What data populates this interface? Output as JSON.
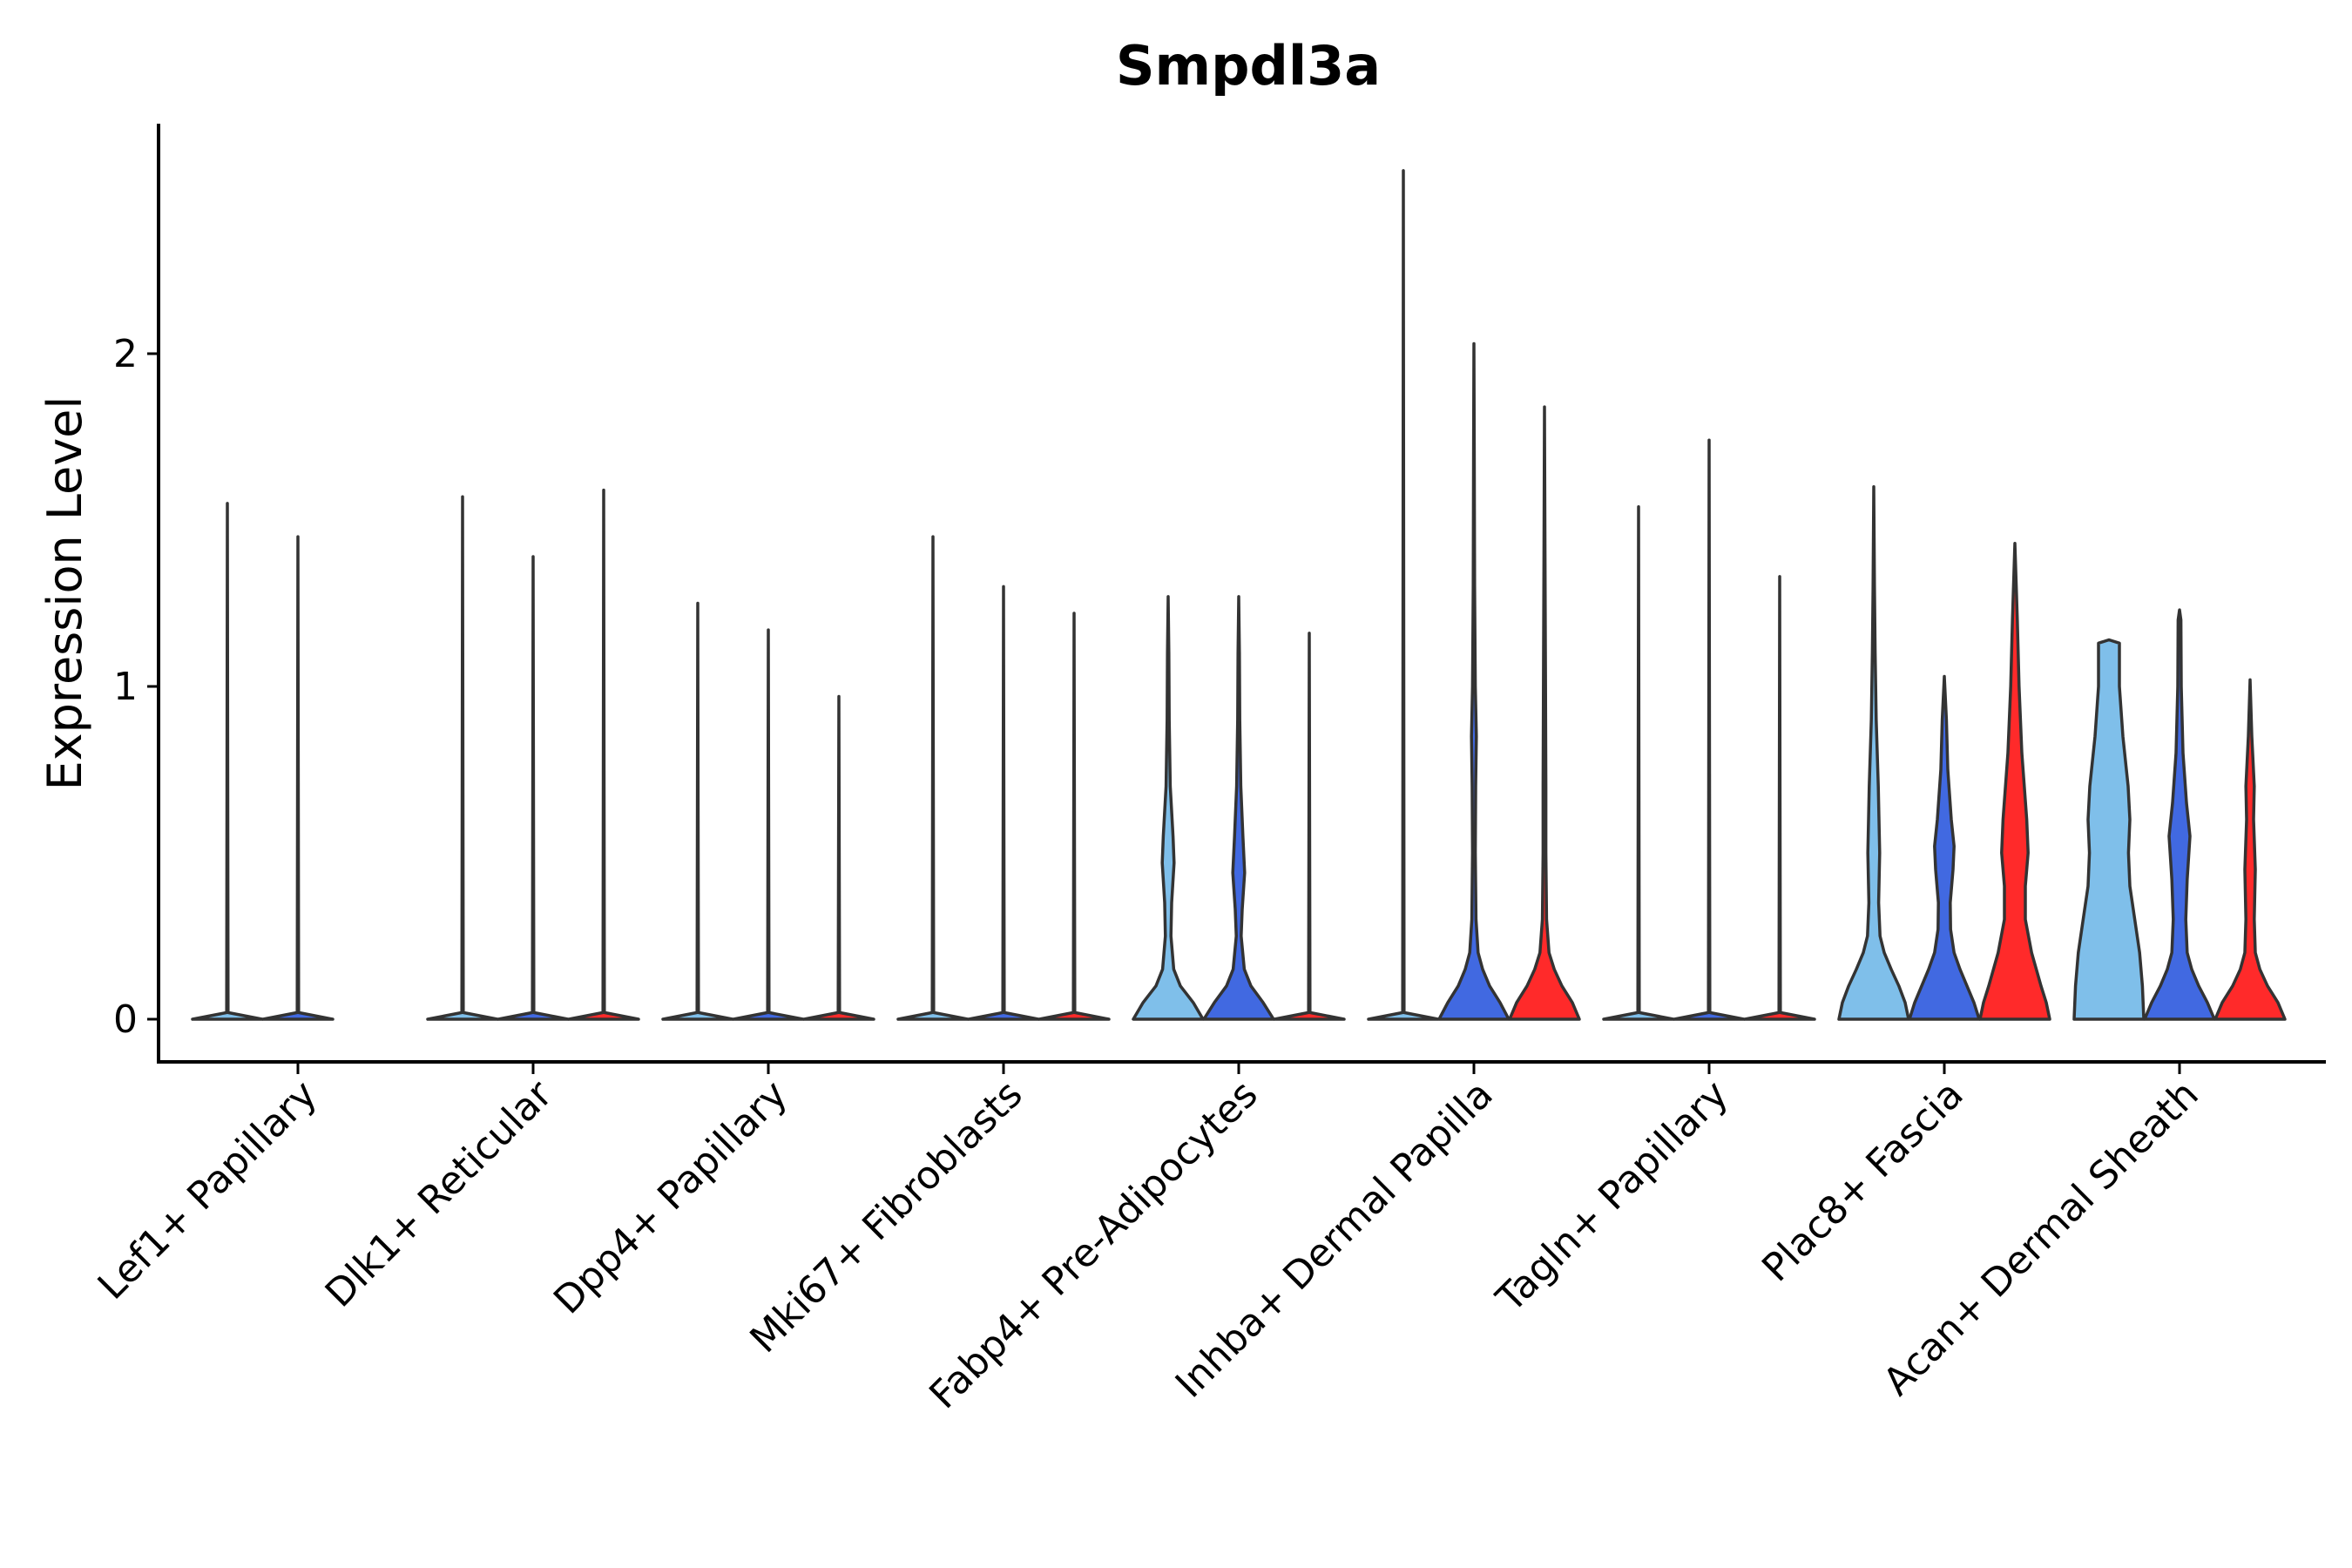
{
  "chart_data": {
    "type": "violin",
    "title": "Smpdl3a",
    "xlabel": "",
    "ylabel": "Expression Level",
    "ylim": [
      -0.13,
      2.7
    ],
    "yticks": [
      0,
      1,
      2
    ],
    "yticklabels": [
      "0",
      "1",
      "2"
    ],
    "categories": [
      "Lef1+ Papillary",
      "Dlk1+ Reticular",
      "Dpp4+ Papillary",
      "Mki67+ Fibroblasts",
      "Fabp4+ Pre-Adipocytes",
      "Inhba+ Dermal Papilla",
      "Tagln+ Papillary",
      "Plac8+ Fascia",
      "Acan+ Dermal Sheath"
    ],
    "series_colors": [
      "#7fbfea",
      "#4169e1",
      "#ff2a2a"
    ],
    "violins": [
      {
        "category": 0,
        "series": 0,
        "max": 1.55,
        "profile": [
          [
            0,
            1
          ],
          [
            0.02,
            0.02
          ],
          [
            1.55,
            0
          ]
        ]
      },
      {
        "category": 0,
        "series": 1,
        "max": 1.45,
        "profile": [
          [
            0,
            1
          ],
          [
            0.02,
            0.02
          ],
          [
            1.45,
            0
          ]
        ]
      },
      {
        "category": 1,
        "series": 0,
        "max": 1.57,
        "profile": [
          [
            0,
            1
          ],
          [
            0.02,
            0.02
          ],
          [
            1.57,
            0
          ]
        ]
      },
      {
        "category": 1,
        "series": 1,
        "max": 1.39,
        "profile": [
          [
            0,
            1
          ],
          [
            0.02,
            0.02
          ],
          [
            1.39,
            0
          ]
        ]
      },
      {
        "category": 1,
        "series": 2,
        "max": 1.59,
        "profile": [
          [
            0,
            1
          ],
          [
            0.02,
            0.02
          ],
          [
            1.59,
            0
          ]
        ]
      },
      {
        "category": 2,
        "series": 0,
        "max": 1.25,
        "profile": [
          [
            0,
            1
          ],
          [
            0.02,
            0.02
          ],
          [
            1.25,
            0
          ]
        ]
      },
      {
        "category": 2,
        "series": 1,
        "max": 1.17,
        "profile": [
          [
            0,
            1
          ],
          [
            0.02,
            0.02
          ],
          [
            1.17,
            0
          ]
        ]
      },
      {
        "category": 2,
        "series": 2,
        "max": 0.97,
        "profile": [
          [
            0,
            1
          ],
          [
            0.02,
            0.02
          ],
          [
            0.97,
            0
          ]
        ]
      },
      {
        "category": 3,
        "series": 0,
        "max": 1.45,
        "profile": [
          [
            0,
            1
          ],
          [
            0.02,
            0.02
          ],
          [
            1.45,
            0
          ]
        ]
      },
      {
        "category": 3,
        "series": 1,
        "max": 1.3,
        "profile": [
          [
            0,
            1
          ],
          [
            0.02,
            0.02
          ],
          [
            1.3,
            0
          ]
        ]
      },
      {
        "category": 3,
        "series": 2,
        "max": 1.22,
        "profile": [
          [
            0,
            1
          ],
          [
            0.02,
            0.02
          ],
          [
            1.22,
            0
          ]
        ]
      },
      {
        "category": 4,
        "series": 0,
        "max": 1.27,
        "profile": [
          [
            0,
            1
          ],
          [
            0.05,
            0.72
          ],
          [
            0.1,
            0.35
          ],
          [
            0.15,
            0.16
          ],
          [
            0.25,
            0.08
          ],
          [
            0.35,
            0.1
          ],
          [
            0.47,
            0.17
          ],
          [
            0.55,
            0.14
          ],
          [
            0.7,
            0.06
          ],
          [
            0.9,
            0.03
          ],
          [
            1.1,
            0.02
          ],
          [
            1.27,
            0
          ]
        ]
      },
      {
        "category": 4,
        "series": 1,
        "max": 1.27,
        "profile": [
          [
            0,
            1
          ],
          [
            0.05,
            0.7
          ],
          [
            0.1,
            0.35
          ],
          [
            0.15,
            0.16
          ],
          [
            0.25,
            0.07
          ],
          [
            0.33,
            0.1
          ],
          [
            0.44,
            0.17
          ],
          [
            0.55,
            0.12
          ],
          [
            0.7,
            0.06
          ],
          [
            0.9,
            0.03
          ],
          [
            1.1,
            0.02
          ],
          [
            1.27,
            0
          ]
        ]
      },
      {
        "category": 4,
        "series": 2,
        "max": 1.16,
        "profile": [
          [
            0,
            1
          ],
          [
            0.02,
            0.02
          ],
          [
            1.16,
            0
          ]
        ]
      },
      {
        "category": 5,
        "series": 0,
        "max": 2.55,
        "profile": [
          [
            0,
            1
          ],
          [
            0.02,
            0.02
          ],
          [
            2.55,
            0
          ]
        ]
      },
      {
        "category": 5,
        "series": 1,
        "max": 2.03,
        "profile": [
          [
            0,
            1
          ],
          [
            0.05,
            0.75
          ],
          [
            0.1,
            0.45
          ],
          [
            0.15,
            0.25
          ],
          [
            0.2,
            0.12
          ],
          [
            0.3,
            0.06
          ],
          [
            0.5,
            0.04
          ],
          [
            0.7,
            0.05
          ],
          [
            0.85,
            0.07
          ],
          [
            1.0,
            0.04
          ],
          [
            1.3,
            0.02
          ],
          [
            1.7,
            0.01
          ],
          [
            2.03,
            0
          ]
        ]
      },
      {
        "category": 5,
        "series": 2,
        "max": 1.84,
        "profile": [
          [
            0,
            1
          ],
          [
            0.05,
            0.8
          ],
          [
            0.1,
            0.5
          ],
          [
            0.15,
            0.28
          ],
          [
            0.2,
            0.13
          ],
          [
            0.3,
            0.06
          ],
          [
            0.5,
            0.04
          ],
          [
            0.7,
            0.04
          ],
          [
            1.0,
            0.03
          ],
          [
            1.4,
            0.015
          ],
          [
            1.84,
            0
          ]
        ]
      },
      {
        "category": 6,
        "series": 0,
        "max": 1.54,
        "profile": [
          [
            0,
            1
          ],
          [
            0.02,
            0.02
          ],
          [
            1.54,
            0
          ]
        ]
      },
      {
        "category": 6,
        "series": 1,
        "max": 1.74,
        "profile": [
          [
            0,
            1
          ],
          [
            0.02,
            0.02
          ],
          [
            1.74,
            0
          ]
        ]
      },
      {
        "category": 6,
        "series": 2,
        "max": 1.33,
        "profile": [
          [
            0,
            1
          ],
          [
            0.02,
            0.02
          ],
          [
            1.33,
            0
          ]
        ]
      },
      {
        "category": 7,
        "series": 0,
        "max": 1.6,
        "profile": [
          [
            0,
            1
          ],
          [
            0.05,
            0.9
          ],
          [
            0.1,
            0.72
          ],
          [
            0.15,
            0.5
          ],
          [
            0.2,
            0.3
          ],
          [
            0.25,
            0.18
          ],
          [
            0.35,
            0.14
          ],
          [
            0.5,
            0.17
          ],
          [
            0.7,
            0.13
          ],
          [
            0.9,
            0.07
          ],
          [
            1.1,
            0.04
          ],
          [
            1.3,
            0.02
          ],
          [
            1.6,
            0
          ]
        ]
      },
      {
        "category": 7,
        "series": 1,
        "max": 1.03,
        "profile": [
          [
            0,
            1
          ],
          [
            0.05,
            0.85
          ],
          [
            0.1,
            0.65
          ],
          [
            0.15,
            0.45
          ],
          [
            0.2,
            0.28
          ],
          [
            0.27,
            0.18
          ],
          [
            0.35,
            0.17
          ],
          [
            0.45,
            0.25
          ],
          [
            0.52,
            0.28
          ],
          [
            0.6,
            0.2
          ],
          [
            0.75,
            0.1
          ],
          [
            0.9,
            0.06
          ],
          [
            1.03,
            0
          ]
        ]
      },
      {
        "category": 7,
        "series": 2,
        "max": 1.43,
        "profile": [
          [
            0,
            1
          ],
          [
            0.05,
            0.9
          ],
          [
            0.1,
            0.75
          ],
          [
            0.2,
            0.48
          ],
          [
            0.3,
            0.3
          ],
          [
            0.4,
            0.3
          ],
          [
            0.5,
            0.38
          ],
          [
            0.6,
            0.34
          ],
          [
            0.8,
            0.2
          ],
          [
            1.0,
            0.12
          ],
          [
            1.2,
            0.07
          ],
          [
            1.43,
            0
          ]
        ]
      },
      {
        "category": 8,
        "series": 0,
        "max": 1.14,
        "profile": [
          [
            0,
            1
          ],
          [
            0.1,
            0.96
          ],
          [
            0.2,
            0.88
          ],
          [
            0.3,
            0.74
          ],
          [
            0.4,
            0.6
          ],
          [
            0.5,
            0.56
          ],
          [
            0.6,
            0.6
          ],
          [
            0.7,
            0.55
          ],
          [
            0.85,
            0.4
          ],
          [
            1.0,
            0.3
          ],
          [
            1.13,
            0.3
          ],
          [
            1.14,
            0
          ]
        ]
      },
      {
        "category": 8,
        "series": 1,
        "max": 1.23,
        "profile": [
          [
            0,
            1
          ],
          [
            0.05,
            0.8
          ],
          [
            0.1,
            0.55
          ],
          [
            0.15,
            0.35
          ],
          [
            0.2,
            0.22
          ],
          [
            0.3,
            0.18
          ],
          [
            0.42,
            0.22
          ],
          [
            0.55,
            0.3
          ],
          [
            0.65,
            0.2
          ],
          [
            0.8,
            0.1
          ],
          [
            1.0,
            0.05
          ],
          [
            1.2,
            0.04
          ],
          [
            1.23,
            0
          ]
        ]
      },
      {
        "category": 8,
        "series": 2,
        "max": 1.02,
        "profile": [
          [
            0,
            1
          ],
          [
            0.05,
            0.8
          ],
          [
            0.1,
            0.5
          ],
          [
            0.15,
            0.28
          ],
          [
            0.2,
            0.15
          ],
          [
            0.3,
            0.12
          ],
          [
            0.45,
            0.15
          ],
          [
            0.6,
            0.1
          ],
          [
            0.7,
            0.12
          ],
          [
            0.85,
            0.05
          ],
          [
            1.02,
            0
          ]
        ]
      }
    ]
  }
}
